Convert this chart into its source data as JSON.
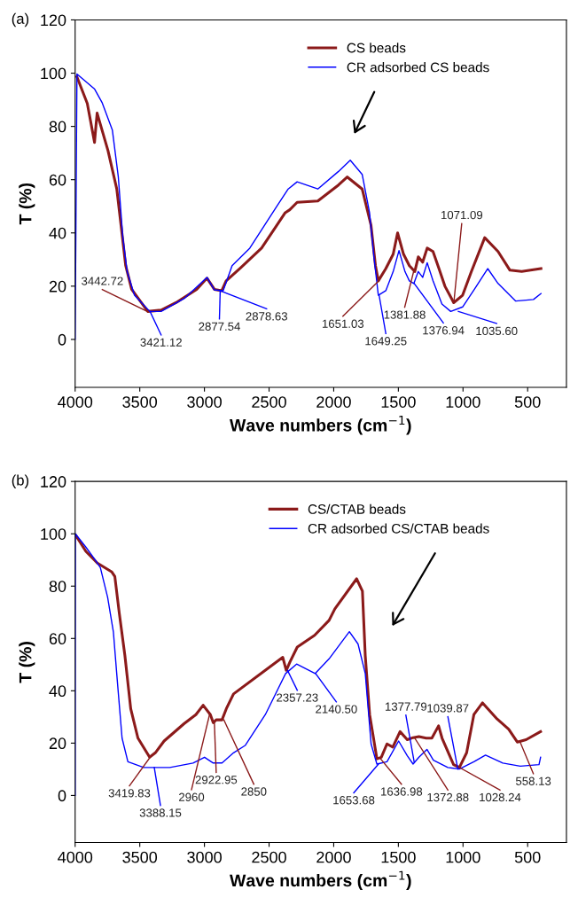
{
  "chart_data": [
    {
      "type": "line",
      "title": "(a)",
      "xlabel": "Wave numbers (cm$^{−1}$)",
      "ylabel": "T (%)",
      "xlim": [
        4000,
        200
      ],
      "ylim": [
        -18,
        120
      ],
      "xticks": [
        4000,
        3500,
        3000,
        2500,
        2000,
        1500,
        1000,
        500
      ],
      "yticks": [
        0,
        20,
        40,
        60,
        80,
        100,
        120
      ],
      "grid": false,
      "legend": "top right",
      "marker": "none",
      "line_style": "solid",
      "series": [
        {
          "name": "CS beads",
          "color": "#8b1a1a",
          "x": [
            3986,
            3906,
            3850,
            3838,
            3830,
            3746,
            3678,
            3643,
            3609,
            3563,
            3438,
            3335,
            3220,
            3060,
            2980,
            2923,
            2866,
            2832,
            2718,
            2558,
            2375,
            2340,
            2283,
            2123,
            1963,
            1895,
            1780,
            1712,
            1677,
            1655,
            1597,
            1540,
            1506,
            1460,
            1415,
            1373,
            1346,
            1312,
            1277,
            1232,
            1186,
            1140,
            1072,
            1003,
            935,
            832,
            729,
            637,
            546,
            397
          ],
          "values": [
            98.6,
            88.6,
            74,
            80.8,
            85,
            70.9,
            56.5,
            42,
            27.7,
            18.8,
            10.5,
            11,
            13.8,
            18.8,
            23,
            18.8,
            18.3,
            22,
            27,
            34.3,
            47.6,
            48.7,
            51.5,
            52,
            58,
            61,
            56.5,
            43,
            27.7,
            22,
            26.6,
            32,
            40,
            32,
            27.7,
            25.5,
            31,
            29,
            34.3,
            33,
            26.6,
            20,
            13.8,
            16.6,
            25.5,
            38.2,
            33,
            26,
            25.5,
            26.6
          ]
        },
        {
          "name": "CR adsorbed CS beads",
          "color": "#0000ff",
          "x": [
            4000,
            3986,
            3849,
            3792,
            3712,
            3666,
            3632,
            3598,
            3541,
            3422,
            3335,
            3152,
            2980,
            2923,
            2855,
            2786,
            2649,
            2443,
            2352,
            2283,
            2123,
            1963,
            1872,
            1780,
            1723,
            1689,
            1655,
            1597,
            1540,
            1495,
            1449,
            1415,
            1380,
            1346,
            1312,
            1277,
            1232,
            1163,
            1095,
            1003,
            912,
            809,
            729,
            592,
            455,
            397
          ],
          "values": [
            0,
            99.7,
            94,
            89,
            78.6,
            61,
            38.8,
            25.5,
            16.6,
            10.5,
            10.5,
            15.5,
            23.3,
            18.6,
            18.3,
            27.7,
            34.3,
            49.8,
            56.5,
            59.2,
            56.5,
            63.1,
            67.3,
            62,
            47.6,
            31,
            16.6,
            18.3,
            25.5,
            33.4,
            25.5,
            22,
            21,
            25.5,
            23.3,
            28.8,
            22,
            13.3,
            10.5,
            12.2,
            18.8,
            26.6,
            21,
            14.4,
            15,
            17.2
          ]
        }
      ],
      "annotations": [
        {
          "text": "3442.72",
          "x": 3442,
          "y": 10.5
        },
        {
          "text": "3421.12",
          "x": 3421,
          "y": 10.5
        },
        {
          "text": "2877.54",
          "x": 2878,
          "y": 18.3
        },
        {
          "text": "2878.63",
          "x": 2879,
          "y": 18.3
        },
        {
          "text": "1651.03",
          "x": 1651,
          "y": 22
        },
        {
          "text": "1649.25",
          "x": 1649,
          "y": 16.6
        },
        {
          "text": "1381.88",
          "x": 1382,
          "y": 25.5
        },
        {
          "text": "1376.94",
          "x": 1377,
          "y": 21
        },
        {
          "text": "1071.09",
          "x": 1071,
          "y": 13.8
        },
        {
          "text": "1035.60",
          "x": 1036,
          "y": 10.5
        }
      ]
    },
    {
      "type": "line",
      "title": "(b)",
      "xlabel": "Wave numbers (cm$^{−1}$)",
      "ylabel": "T (%)",
      "xlim": [
        4000,
        200
      ],
      "ylim": [
        -18,
        120
      ],
      "xticks": [
        4000,
        3500,
        3000,
        2500,
        2000,
        1500,
        1000,
        500
      ],
      "yticks": [
        0,
        20,
        40,
        60,
        80,
        100,
        120
      ],
      "grid": false,
      "legend": "top right",
      "marker": "none",
      "line_style": "solid",
      "series": [
        {
          "name": "CS/CTAB beads",
          "color": "#8b1a1a",
          "x": [
            3995,
            3917,
            3828,
            3716,
            3693,
            3660,
            3615,
            3570,
            3514,
            3424,
            3380,
            3312,
            3156,
            3066,
            3010,
            2954,
            2932,
            2909,
            2864,
            2831,
            2775,
            2394,
            2367,
            2338,
            2282,
            2148,
            2036,
            1991,
            1823,
            1778,
            1756,
            1722,
            1666,
            1632,
            1588,
            1543,
            1487,
            1431,
            1386,
            1341,
            1285,
            1241,
            1189,
            1162,
            1073,
            1028,
            972,
            916,
            849,
            736,
            647,
            580,
            512,
            400
          ],
          "values": [
            99.4,
            93.3,
            88.8,
            85.4,
            83.7,
            70.2,
            53.4,
            33.1,
            21.9,
            14.6,
            16.3,
            20.8,
            27.5,
            30.9,
            34.5,
            30.9,
            27.8,
            28.9,
            28.9,
            33.1,
            38.8,
            52.8,
            47.8,
            51.1,
            56.7,
            61.2,
            66.9,
            71.3,
            82.8,
            78.1,
            53.4,
            30.9,
            14,
            14.6,
            19.7,
            18.5,
            24.4,
            21.3,
            22.1,
            22.5,
            21.9,
            21.9,
            26.6,
            21.9,
            11.8,
            10.7,
            16.3,
            30.9,
            35.4,
            29.2,
            25.3,
            20.4,
            21.3,
            24.4
          ]
        },
        {
          "name": "CR adsorbed CS/CTAB beads",
          "color": "#0000ff",
          "x": [
            4000,
            3998,
            3917,
            3850,
            3805,
            3749,
            3704,
            3671,
            3637,
            3592,
            3469,
            3268,
            3088,
            2999,
            2932,
            2864,
            2775,
            2685,
            2529,
            2372,
            2287,
            2143,
            2036,
            1879,
            1812,
            1756,
            1711,
            1666,
            1588,
            1498,
            1431,
            1386,
            1341,
            1279,
            1229,
            1117,
            1028,
            916,
            826,
            692,
            557,
            412,
            400
          ],
          "values": [
            0,
            100,
            94.9,
            90.4,
            87.1,
            75.8,
            62.4,
            42.1,
            21.9,
            12.9,
            10.7,
            10.7,
            12.4,
            14.6,
            12.4,
            12.4,
            16.3,
            19.1,
            30.9,
            46.6,
            50.2,
            46.6,
            52.2,
            62.6,
            57.9,
            46.6,
            19.7,
            12,
            12.9,
            20.8,
            15.2,
            12,
            14.6,
            17.6,
            13.5,
            10.7,
            10.1,
            12.9,
            15.4,
            12.4,
            11.2,
            11.8,
            14.6
          ]
        }
      ],
      "annotations": [
        {
          "text": "3419.83",
          "x": 3420,
          "y": 14.6
        },
        {
          "text": "3388.15",
          "x": 3388,
          "y": 10.7
        },
        {
          "text": "2960",
          "x": 2960,
          "y": 31
        },
        {
          "text": "2922.95",
          "x": 2923,
          "y": 27.8
        },
        {
          "text": "2850",
          "x": 2850,
          "y": 28.9
        },
        {
          "text": "2357.23",
          "x": 2357,
          "y": 47.8
        },
        {
          "text": "2140.50",
          "x": 2140,
          "y": 46.6
        },
        {
          "text": "1653.68",
          "x": 1654,
          "y": 12
        },
        {
          "text": "1636.98",
          "x": 1637,
          "y": 14
        },
        {
          "text": "1377.79",
          "x": 1378,
          "y": 12.9
        },
        {
          "text": "1372.88",
          "x": 1373,
          "y": 21.9
        },
        {
          "text": "1039.87",
          "x": 1040,
          "y": 10.1
        },
        {
          "text": "1028.24",
          "x": 1028,
          "y": 10.7
        },
        {
          "text": "558.13",
          "x": 558,
          "y": 20.4
        }
      ]
    }
  ]
}
